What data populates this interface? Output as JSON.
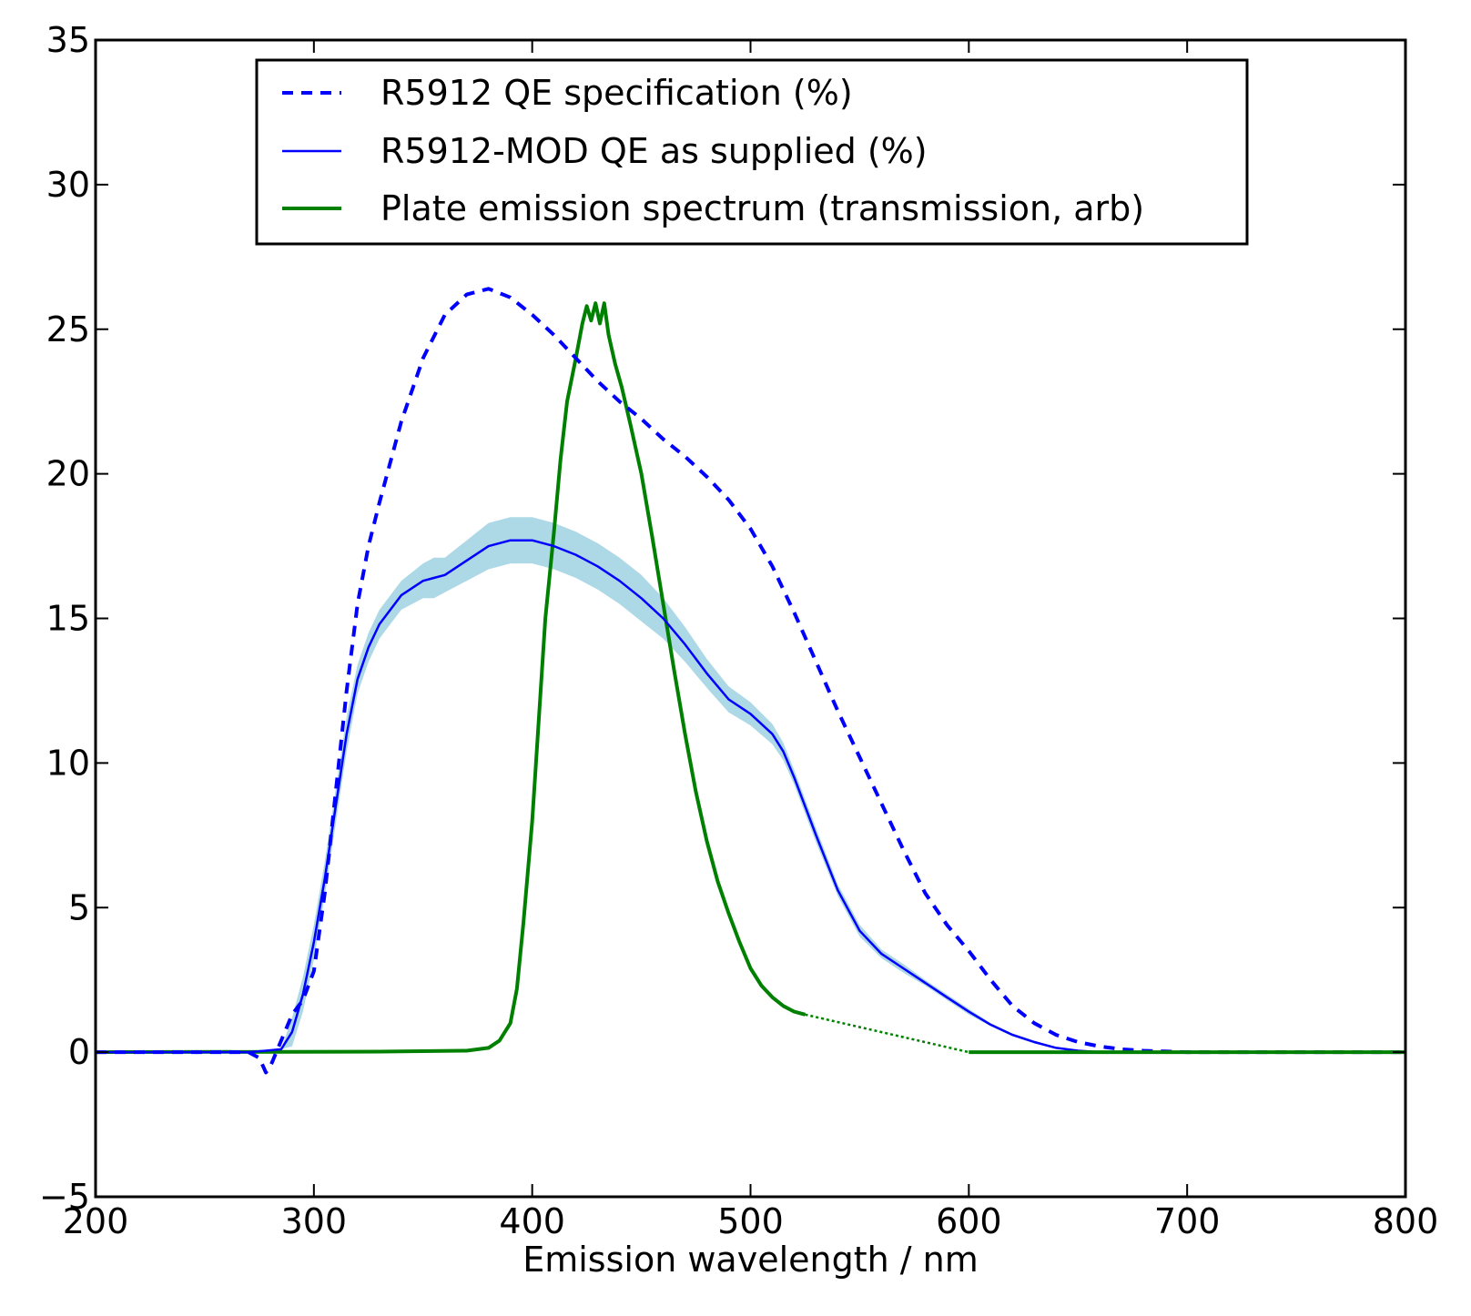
{
  "chart_data": {
    "type": "line",
    "title": "",
    "xlabel": "Emission wavelength / nm",
    "ylabel": "",
    "xlim": [
      200,
      800
    ],
    "ylim": [
      -5,
      35
    ],
    "x_ticks": [
      200,
      300,
      400,
      500,
      600,
      700,
      800
    ],
    "y_ticks": [
      -5,
      0,
      5,
      10,
      15,
      20,
      25,
      30,
      35
    ],
    "x_tick_labels": [
      "200",
      "300",
      "400",
      "500",
      "600",
      "700",
      "800"
    ],
    "y_tick_labels": [
      "−5",
      "0",
      "5",
      "10",
      "15",
      "20",
      "25",
      "30",
      "35"
    ],
    "grid": false,
    "legend_position": "top-center",
    "series": [
      {
        "name": "R5912 QE specification (%)",
        "style": "dashed",
        "color": "#0000ff",
        "x": [
          200,
          260,
          270,
          275,
          278,
          280,
          285,
          290,
          295,
          300,
          305,
          310,
          315,
          320,
          325,
          330,
          340,
          350,
          360,
          370,
          380,
          390,
          400,
          410,
          420,
          430,
          440,
          450,
          460,
          470,
          480,
          490,
          500,
          510,
          520,
          530,
          540,
          550,
          560,
          570,
          580,
          590,
          600,
          610,
          620,
          630,
          640,
          650,
          660,
          670,
          680,
          700,
          750,
          800
        ],
        "y": [
          0,
          0,
          0,
          -0.2,
          -0.7,
          -0.5,
          0.4,
          1.3,
          1.8,
          2.8,
          5.5,
          9.0,
          12.5,
          15.5,
          17.5,
          19.0,
          21.8,
          24.0,
          25.5,
          26.2,
          26.4,
          26.1,
          25.5,
          24.8,
          24.0,
          23.2,
          22.5,
          21.9,
          21.2,
          20.6,
          19.9,
          19.1,
          18.1,
          16.8,
          15.2,
          13.5,
          11.8,
          10.2,
          8.6,
          7.0,
          5.5,
          4.4,
          3.5,
          2.5,
          1.6,
          1.0,
          0.6,
          0.35,
          0.2,
          0.1,
          0.05,
          0,
          0,
          0
        ]
      },
      {
        "name": "R5912-MOD QE as supplied (%)",
        "style": "solid",
        "color": "#0000ff",
        "band_color": "#add8e6",
        "x": [
          200,
          270,
          278,
          285,
          290,
          295,
          300,
          305,
          310,
          315,
          320,
          325,
          330,
          340,
          350,
          355,
          360,
          370,
          380,
          390,
          400,
          410,
          420,
          430,
          440,
          450,
          460,
          470,
          480,
          490,
          500,
          510,
          515,
          520,
          530,
          540,
          550,
          560,
          570,
          580,
          590,
          600,
          610,
          620,
          630,
          640,
          650,
          660,
          680,
          700,
          750,
          800
        ],
        "y": [
          0,
          0,
          0.05,
          0.1,
          0.7,
          2.0,
          3.8,
          6.0,
          8.5,
          11.0,
          12.9,
          14.0,
          14.8,
          15.8,
          16.3,
          16.4,
          16.5,
          17.0,
          17.5,
          17.7,
          17.7,
          17.5,
          17.2,
          16.8,
          16.3,
          15.7,
          15.0,
          14.1,
          13.1,
          12.2,
          11.7,
          11.0,
          10.4,
          9.5,
          7.5,
          5.6,
          4.2,
          3.4,
          2.9,
          2.4,
          1.9,
          1.4,
          0.95,
          0.6,
          0.35,
          0.15,
          0.05,
          0,
          0,
          0,
          0,
          0
        ],
        "band_halfwidth": [
          0,
          0,
          0,
          0,
          0.5,
          0.6,
          0.6,
          0.6,
          0.6,
          0.6,
          0.5,
          0.5,
          0.5,
          0.5,
          0.6,
          0.7,
          0.6,
          0.7,
          0.8,
          0.8,
          0.8,
          0.8,
          0.8,
          0.8,
          0.8,
          0.8,
          0.7,
          0.6,
          0.5,
          0.45,
          0.4,
          0.35,
          0.3,
          0.25,
          0.25,
          0.2,
          0.2,
          0.15,
          0.15,
          0.1,
          0.1,
          0.1,
          0.05,
          0.05,
          0.05,
          0,
          0,
          0,
          0,
          0,
          0,
          0
        ]
      },
      {
        "name": "Plate emission spectrum (transmission, arb)",
        "style": "solid",
        "color": "#008000",
        "x": [
          200,
          330,
          370,
          380,
          385,
          390,
          393,
          396,
          400,
          403,
          406,
          410,
          413,
          416,
          420,
          423,
          425,
          427,
          429,
          431,
          433,
          435,
          438,
          441,
          445,
          450,
          455,
          460,
          465,
          470,
          475,
          480,
          485,
          490,
          495,
          500,
          505,
          510,
          515,
          520,
          525
        ],
        "y": [
          0,
          0.02,
          0.05,
          0.15,
          0.4,
          1.0,
          2.2,
          4.5,
          8.0,
          11.5,
          15.0,
          18.0,
          20.5,
          22.5,
          24.0,
          25.2,
          25.8,
          25.3,
          25.9,
          25.2,
          25.9,
          24.8,
          23.8,
          23.0,
          21.7,
          20.0,
          17.8,
          15.5,
          13.2,
          11.0,
          9.0,
          7.3,
          5.9,
          4.8,
          3.8,
          2.9,
          2.3,
          1.9,
          1.6,
          1.4,
          1.3
        ]
      }
    ],
    "extrapolation": {
      "series": "Plate emission spectrum (transmission, arb)",
      "style": "dotted",
      "x": [
        525,
        600
      ],
      "y": [
        1.3,
        0
      ]
    },
    "tail": {
      "series": "Plate emission spectrum (transmission, arb)",
      "style": "solid",
      "x": [
        600,
        800
      ],
      "y": [
        0,
        0
      ]
    }
  }
}
